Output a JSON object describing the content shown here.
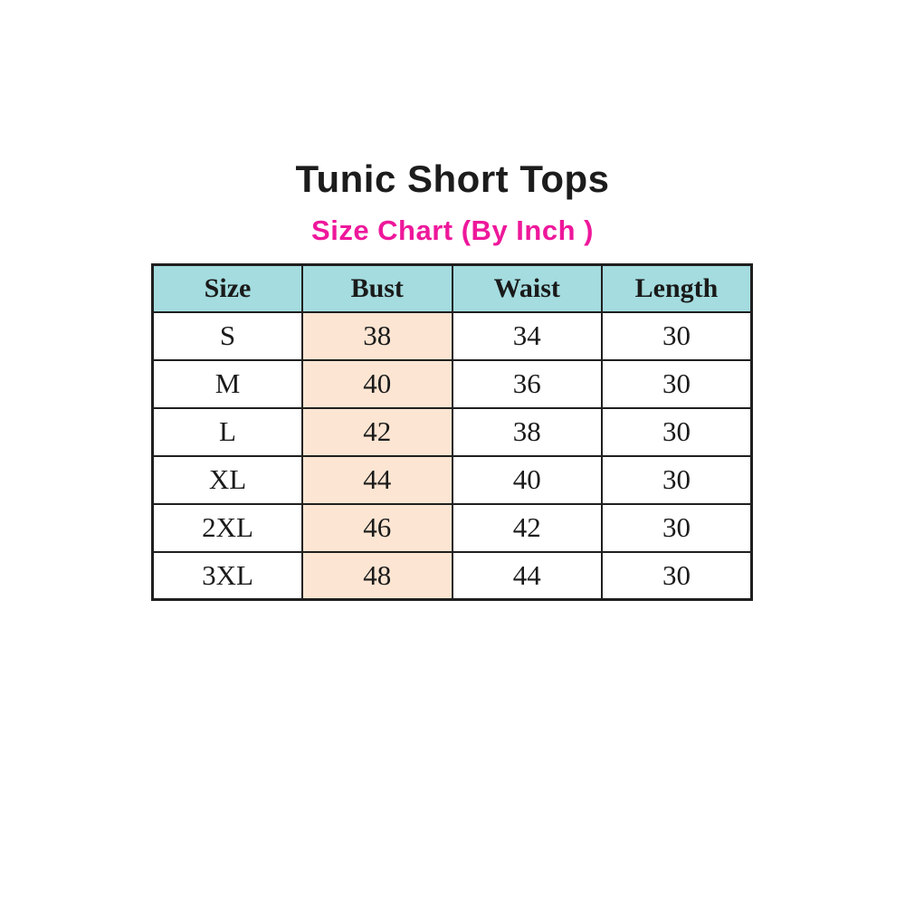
{
  "chart_data": {
    "type": "table",
    "title": "Tunic Short Tops",
    "subtitle": "Size Chart (By Inch )",
    "units": "inch",
    "columns": [
      "Size",
      "Bust",
      "Waist",
      "Length"
    ],
    "rows": [
      [
        "S",
        "38",
        "34",
        "30"
      ],
      [
        "M",
        "40",
        "36",
        "30"
      ],
      [
        "L",
        "42",
        "38",
        "30"
      ],
      [
        "XL",
        "44",
        "40",
        "30"
      ],
      [
        "2XL",
        "46",
        "42",
        "30"
      ],
      [
        "3XL",
        "48",
        "44",
        "30"
      ]
    ],
    "highlighted_column": "Bust"
  },
  "colors": {
    "page_bg": "#ffffff",
    "title_text": "#1c1c1c",
    "subtitle_pink": "#ee189b",
    "header_cell_bg": "#a4dcdf",
    "bust_column_bg": "#fce5d2",
    "table_border": "#1f1f1f"
  }
}
